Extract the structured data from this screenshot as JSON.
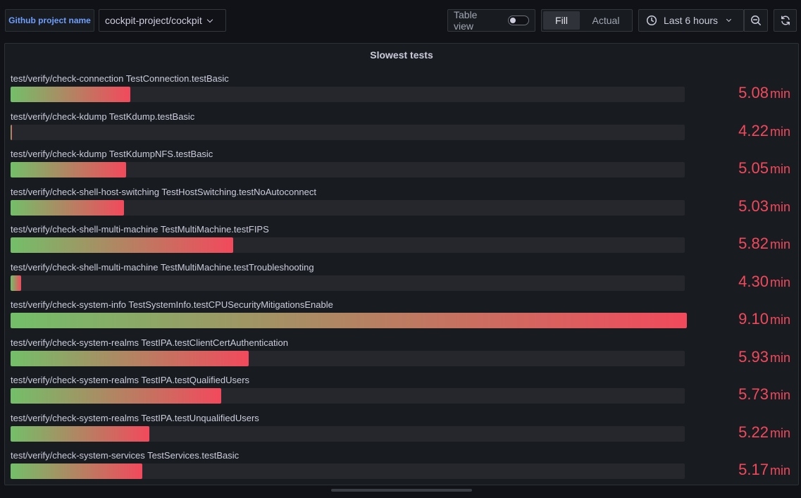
{
  "variables": {
    "project_label": "Github project name",
    "project_value": "cockpit-project/cockpit"
  },
  "controls": {
    "table_view_label": "Table view",
    "table_view_on": false,
    "fill_mode_options": [
      "Fill",
      "Actual"
    ],
    "fill_mode_selected": "Fill",
    "time_range": "Last 6 hours"
  },
  "icons": {
    "time": "clock-icon",
    "zoom": "zoom-out-icon",
    "refresh": "refresh-icon"
  },
  "panel": {
    "title": "Slowest tests",
    "unit": "min",
    "max_value": 9.1,
    "min_value": 4.22,
    "value_color": "#f2495c",
    "gradient": [
      "#73bf69",
      "#f2495c"
    ],
    "rows": [
      {
        "label": "test/verify/check-connection TestConnection.testBasic",
        "value": "5.08",
        "fraction": 0.177
      },
      {
        "label": "test/verify/check-kdump TestKdump.testBasic",
        "value": "4.22",
        "fraction": 0.0
      },
      {
        "label": "test/verify/check-kdump TestKdumpNFS.testBasic",
        "value": "5.05",
        "fraction": 0.171
      },
      {
        "label": "test/verify/check-shell-host-switching TestHostSwitching.testNoAutoconnect",
        "value": "5.03",
        "fraction": 0.168
      },
      {
        "label": "test/verify/check-shell-multi-machine TestMultiMachine.testFIPS",
        "value": "5.82",
        "fraction": 0.329
      },
      {
        "label": "test/verify/check-shell-multi-machine TestMultiMachine.testTroubleshooting",
        "value": "4.30",
        "fraction": 0.016
      },
      {
        "label": "test/verify/check-system-info TestSystemInfo.testCPUSecurityMitigationsEnable",
        "value": "9.10",
        "fraction": 1.0
      },
      {
        "label": "test/verify/check-system-realms TestIPA.testClientCertAuthentication",
        "value": "5.93",
        "fraction": 0.352
      },
      {
        "label": "test/verify/check-system-realms TestIPA.testQualifiedUsers",
        "value": "5.73",
        "fraction": 0.311
      },
      {
        "label": "test/verify/check-system-realms TestIPA.testUnqualifiedUsers",
        "value": "5.22",
        "fraction": 0.205
      },
      {
        "label": "test/verify/check-system-services TestServices.testBasic",
        "value": "5.17",
        "fraction": 0.195
      }
    ]
  }
}
